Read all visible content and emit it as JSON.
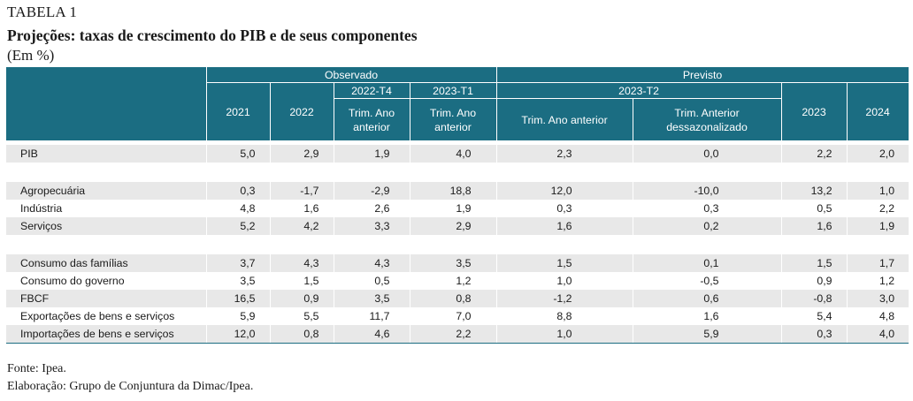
{
  "header": {
    "label": "TABELA 1",
    "title": "Projeções: taxas de crescimento do PIB e de seus componentes",
    "unit": "(Em %)"
  },
  "columns": {
    "group_observed": "Observado",
    "group_forecast": "Previsto",
    "sub_2022t4": "2022-T4",
    "sub_2023t1": "2023-T1",
    "sub_2023t2": "2023-T2",
    "c2021": "2021",
    "c2022": "2022",
    "trim_ano_anterior_l1": "Trim. Ano",
    "trim_ano_anterior_l2": "anterior",
    "trim_ano_anterior_l1b": "Trim. Ano",
    "trim_ano_anterior_l2b": "anterior",
    "trim_ano_anterior_full": "Trim. Ano anterior",
    "trim_anterior_l1": "Trim. Anterior",
    "trim_anterior_l2": "dessazonalizado",
    "c2023": "2023",
    "c2024": "2024"
  },
  "rows": [
    {
      "label": "PIB",
      "values": [
        "5,0",
        "2,9",
        "1,9",
        "4,0",
        "2,3",
        "0,0",
        "2,2",
        "2,0"
      ]
    },
    {
      "label": "Agropecuária",
      "values": [
        "0,3",
        "-1,7",
        "-2,9",
        "18,8",
        "12,0",
        "-10,0",
        "13,2",
        "1,0"
      ]
    },
    {
      "label": "Indústria",
      "values": [
        "4,8",
        "1,6",
        "2,6",
        "1,9",
        "0,3",
        "0,3",
        "0,5",
        "2,2"
      ]
    },
    {
      "label": "Serviços",
      "values": [
        "5,2",
        "4,2",
        "3,3",
        "2,9",
        "1,6",
        "0,2",
        "1,6",
        "1,9"
      ]
    },
    {
      "label": "Consumo das famílias",
      "values": [
        "3,7",
        "4,3",
        "4,3",
        "3,5",
        "1,5",
        "0,1",
        "1,5",
        "1,7"
      ]
    },
    {
      "label": "Consumo do governo",
      "values": [
        "3,5",
        "1,5",
        "0,5",
        "1,2",
        "1,0",
        "-0,5",
        "0,9",
        "1,2"
      ]
    },
    {
      "label": "FBCF",
      "values": [
        "16,5",
        "0,9",
        "3,5",
        "0,8",
        "-1,2",
        "0,6",
        "-0,8",
        "3,0"
      ]
    },
    {
      "label": "Exportações de bens e serviços",
      "values": [
        "5,9",
        "5,5",
        "11,7",
        "7,0",
        "8,8",
        "1,6",
        "5,4",
        "4,8"
      ]
    },
    {
      "label": "Importações de bens e serviços",
      "values": [
        "12,0",
        "0,8",
        "4,6",
        "2,2",
        "1,0",
        "5,9",
        "0,3",
        "4,0"
      ]
    }
  ],
  "footer": {
    "source": "Fonte: Ipea.",
    "credit": "Elaboração: Grupo de Conjuntura da Dimac/Ipea."
  },
  "colors": {
    "header_bg": "#1b6d82",
    "row_shade": "#e8e8e8"
  }
}
